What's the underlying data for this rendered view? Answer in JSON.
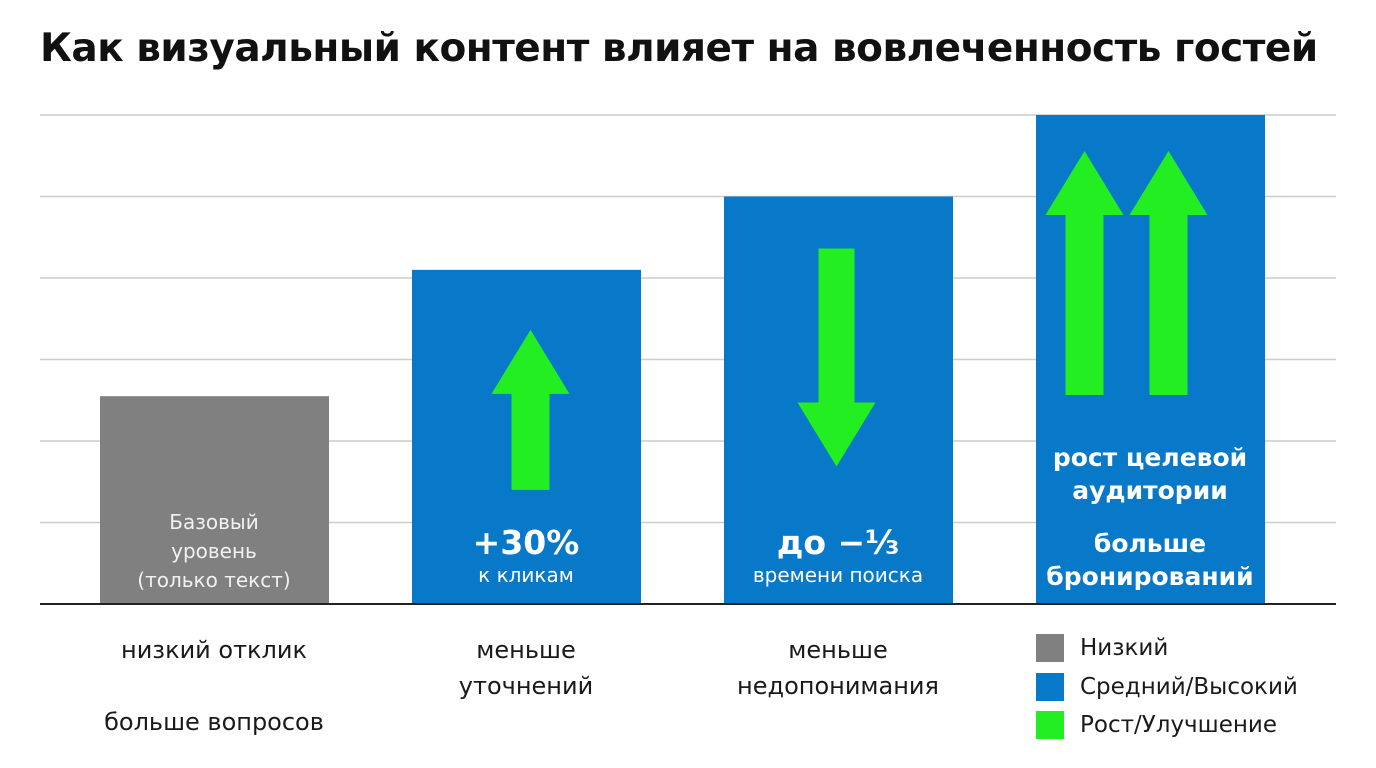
{
  "title": "Как визуальный контент влияет на вовлеченность гостей",
  "colors": {
    "low": "#808080",
    "medium_high": "#0878c8",
    "growth": "#22ee22",
    "grid": "#cccccc",
    "baseline": "#222222"
  },
  "chart_data": {
    "type": "bar",
    "title": "Как визуальный контент влияет на вовлеченность гостей",
    "xlabel": "",
    "ylabel": "",
    "ylim": [
      0,
      6
    ],
    "grid": true,
    "legend_position": "bottom-right",
    "categories": [
      "низкий отклик",
      "меньше уточнений",
      "меньше недопонимания",
      "больше бронирований"
    ],
    "values": [
      2.55,
      4.1,
      5.0,
      6.0
    ],
    "bars": [
      {
        "value": 2.55,
        "level": "low",
        "arrows": [],
        "text": [
          "Базовый",
          "уровень",
          "(только текст)"
        ],
        "below": [
          "низкий отклик",
          "больше вопросов"
        ]
      },
      {
        "value": 4.1,
        "level": "medium_high",
        "arrows": [
          "up"
        ],
        "text_big": "+30%",
        "text_small": "к кликам",
        "below": [
          "меньше",
          "уточнений"
        ]
      },
      {
        "value": 5.0,
        "level": "medium_high",
        "arrows": [
          "down"
        ],
        "text_big": "до −⅓",
        "text_small": "времени поиска",
        "below": [
          "меньше",
          "недопонимания"
        ]
      },
      {
        "value": 6.0,
        "level": "medium_high",
        "arrows": [
          "up",
          "up"
        ],
        "text_bold": [
          "рост целевой",
          "аудитории",
          "больше",
          "бронирований"
        ],
        "below": []
      }
    ],
    "legend": [
      {
        "label": "Низкий",
        "color": "#808080"
      },
      {
        "label": "Средний/Высокий",
        "color": "#0878c8"
      },
      {
        "label": "Рост/Улучшение",
        "color": "#22ee22"
      }
    ]
  }
}
